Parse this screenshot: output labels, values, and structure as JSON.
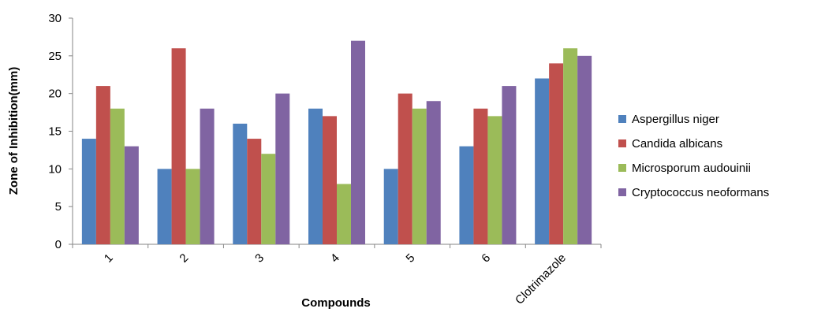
{
  "chart_data": {
    "type": "bar",
    "title": "",
    "xlabel": "Compounds",
    "ylabel": "Zone of Inhibition(mm)",
    "ylim": [
      0,
      30
    ],
    "yticks": [
      "0",
      "5",
      "10",
      "15",
      "20",
      "25",
      "30"
    ],
    "grid": false,
    "legend_position": "right",
    "categories": [
      "1",
      "2",
      "3",
      "4",
      "5",
      "6",
      "Clotrimazole"
    ],
    "series": [
      {
        "name": "Aspergillus niger",
        "color": "#4F81BD",
        "values": [
          14,
          10,
          16,
          18,
          10,
          13,
          22
        ]
      },
      {
        "name": "Candida albicans",
        "color": "#C0504D",
        "values": [
          21,
          26,
          14,
          17,
          20,
          18,
          24
        ]
      },
      {
        "name": "Microsporum audouinii",
        "color": "#9BBB59",
        "values": [
          18,
          10,
          12,
          8,
          18,
          17,
          26
        ]
      },
      {
        "name": "Cryptococcus neoformans",
        "color": "#8064A2",
        "values": [
          13,
          18,
          20,
          27,
          19,
          21,
          25
        ]
      }
    ]
  }
}
